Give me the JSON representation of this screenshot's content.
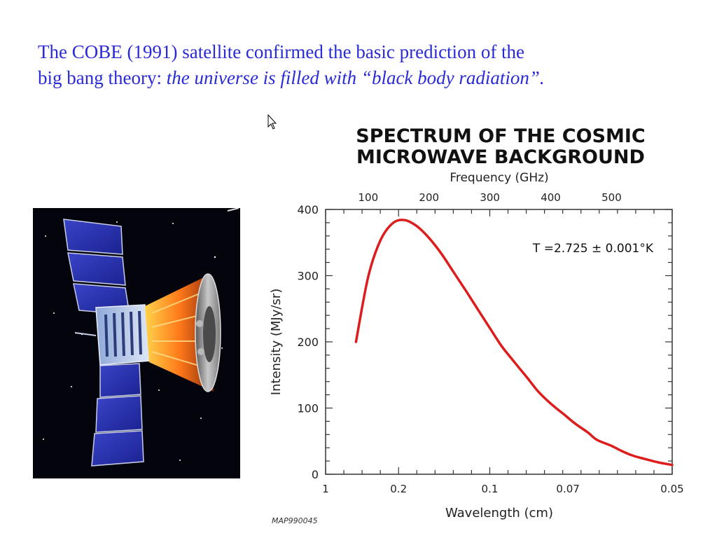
{
  "slide": {
    "line1": "The COBE (1991) satellite confirmed the basic prediction of the",
    "line2_prefix": "big bang theory: ",
    "line2_italic": "the universe is filled with “black body radiation”.",
    "color": "#2a2ad6"
  },
  "icons": [
    "cursor-arrow-icon"
  ],
  "image": {
    "subject": "COBE satellite in space"
  },
  "chart_data": {
    "type": "line",
    "title": [
      "SPECTRUM OF THE COSMIC",
      "MICROWAVE BACKGROUND"
    ],
    "xlabel": "Wavelength (cm)",
    "ylabel": "Intensity (MJy/sr)",
    "top_axis_label": "Frequency (GHz)",
    "x_axis_scale": "reciprocal",
    "x_ticks": [
      {
        "label": "1",
        "value": 1
      },
      {
        "label": "0.2",
        "value": 0.2
      },
      {
        "label": "0.1",
        "value": 0.1
      },
      {
        "label": "0.07",
        "value": 0.07
      },
      {
        "label": "0.05",
        "value": 0.05
      }
    ],
    "top_ticks": [
      {
        "label": "100",
        "value": 100
      },
      {
        "label": "200",
        "value": 200
      },
      {
        "label": "300",
        "value": 300
      },
      {
        "label": "400",
        "value": 400
      },
      {
        "label": "500",
        "value": 500
      }
    ],
    "y_ticks": [
      0,
      100,
      200,
      300,
      400
    ],
    "ylim": [
      0,
      400
    ],
    "annotation": "T =2.725 ± 0.001°K",
    "credit": "MAP990045",
    "line_color": "#dd1c1c",
    "grid": false,
    "series": [
      {
        "x": [
          0.375,
          0.3,
          0.25,
          0.214,
          0.188,
          0.167,
          0.15,
          0.136,
          0.125,
          0.115,
          0.107,
          0.1,
          0.094,
          0.088,
          0.083,
          0.079,
          0.075,
          0.071,
          0.068,
          0.065,
          0.063,
          0.06,
          0.058,
          0.056,
          0.054,
          0.052,
          0.05
        ],
        "y": [
          200,
          298,
          353,
          379,
          384,
          375,
          357,
          333,
          306,
          277,
          249,
          221,
          194,
          169,
          146,
          125,
          107,
          90,
          76,
          63,
          52,
          43,
          35,
          28,
          23,
          18,
          14
        ]
      }
    ]
  }
}
